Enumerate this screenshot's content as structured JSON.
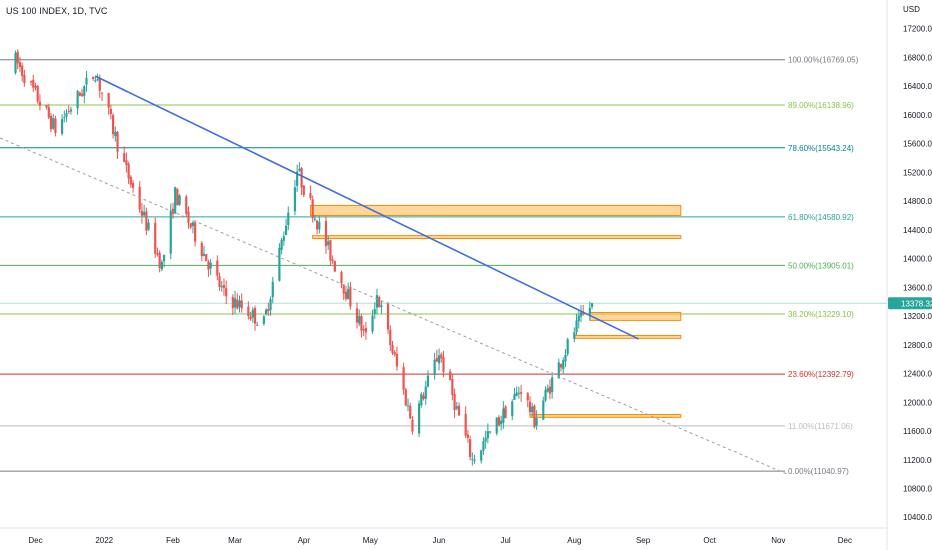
{
  "header": {
    "symbol_title": "US 100 INDEX, 1D, TVC",
    "currency": "USD"
  },
  "chart_data": {
    "type": "candlestick",
    "y_axis": {
      "ylim": [
        10250,
        17600
      ],
      "ticks": [
        "17200.00",
        "16800.00",
        "16400.00",
        "16000.00",
        "15600.00",
        "15200.00",
        "14800.00",
        "14400.00",
        "14000.00",
        "13600.00",
        "13200.00",
        "12800.00",
        "12400.00",
        "12000.00",
        "11600.00",
        "11200.00",
        "10800.00",
        "10400.00"
      ],
      "tick_values": [
        17200,
        16800,
        16400,
        16000,
        15600,
        15200,
        14800,
        14400,
        14000,
        13600,
        13200,
        12800,
        12400,
        12000,
        11600,
        11200,
        10800,
        10400
      ]
    },
    "x_axis": {
      "start_date": "2021-11-15",
      "end_date": "2022-12-20",
      "ticks": [
        {
          "label": "Dec",
          "date": "2021-12-01"
        },
        {
          "label": "2022",
          "date": "2022-01-01"
        },
        {
          "label": "Feb",
          "date": "2022-02-01"
        },
        {
          "label": "Mar",
          "date": "2022-03-01"
        },
        {
          "label": "Apr",
          "date": "2022-04-01"
        },
        {
          "label": "May",
          "date": "2022-05-01"
        },
        {
          "label": "Jun",
          "date": "2022-06-01"
        },
        {
          "label": "Jul",
          "date": "2022-07-01"
        },
        {
          "label": "Aug",
          "date": "2022-08-01"
        },
        {
          "label": "Sep",
          "date": "2022-09-01"
        },
        {
          "label": "Oct",
          "date": "2022-10-01"
        },
        {
          "label": "Nov",
          "date": "2022-11-01"
        },
        {
          "label": "Dec",
          "date": "2022-12-01"
        }
      ]
    },
    "fib_levels": [
      {
        "label": "100.00%(16769.05)",
        "value": 16769.05,
        "color": "#787b86"
      },
      {
        "label": "89.00%(16138.96)",
        "value": 16138.96,
        "color": "#8bc34a"
      },
      {
        "label": "78.60%(15543.24)",
        "value": 15543.24,
        "color": "#00838f"
      },
      {
        "label": "61.80%(14580.92)",
        "value": 14580.92,
        "color": "#26a69a"
      },
      {
        "label": "50.00%(13905.01)",
        "value": 13905.01,
        "color": "#4caf50"
      },
      {
        "label": "38.20%(13229.10)",
        "value": 13229.1,
        "color": "#8bc34a"
      },
      {
        "label": "23.60%(12392.79)",
        "value": 12392.79,
        "color": "#d32f2f"
      },
      {
        "label": "11.00%(11671.06)",
        "value": 11671.06,
        "color": "#bdbdbd"
      },
      {
        "label": "0.00%(11040.97)",
        "value": 11040.97,
        "color": "#787b86"
      }
    ],
    "last_price": {
      "label": "13378.32",
      "value": 13378.32
    },
    "zones": [
      {
        "from": "2022-04-04",
        "to": "2022-09-18",
        "low": 14600,
        "high": 14740
      },
      {
        "from": "2022-04-05",
        "to": "2022-09-18",
        "low": 14280,
        "high": 14320
      },
      {
        "from": "2022-08-08",
        "to": "2022-09-18",
        "low": 13140,
        "high": 13250
      },
      {
        "from": "2022-08-01",
        "to": "2022-09-18",
        "low": 12890,
        "high": 12930
      },
      {
        "from": "2022-07-12",
        "to": "2022-09-18",
        "low": 11790,
        "high": 11830
      }
    ],
    "trendlines": [
      {
        "from": {
          "date": "2021-12-28",
          "value": 16540
        },
        "to": {
          "date": "2022-08-30",
          "value": 12880
        },
        "color": "#3f6fdc",
        "dashed": false
      },
      {
        "from": {
          "date": "2021-11-15",
          "value": 15680
        },
        "to": {
          "date": "2022-11-05",
          "value": 11000
        },
        "color": "#9e9e9e",
        "dashed": true
      }
    ],
    "anchors": [
      {
        "date": "2021-11-22",
        "value": 16765
      },
      {
        "date": "2021-12-10",
        "value": 15800
      },
      {
        "date": "2021-12-28",
        "value": 16600
      },
      {
        "date": "2022-01-10",
        "value": 15300
      },
      {
        "date": "2022-01-27",
        "value": 13900
      },
      {
        "date": "2022-02-02",
        "value": 14900
      },
      {
        "date": "2022-02-24",
        "value": 13500
      },
      {
        "date": "2022-03-14",
        "value": 13100
      },
      {
        "date": "2022-03-29",
        "value": 15230
      },
      {
        "date": "2022-04-11",
        "value": 14200
      },
      {
        "date": "2022-04-29",
        "value": 12900
      },
      {
        "date": "2022-05-04",
        "value": 13500
      },
      {
        "date": "2022-05-20",
        "value": 11700
      },
      {
        "date": "2022-06-01",
        "value": 12700
      },
      {
        "date": "2022-06-16",
        "value": 11200
      },
      {
        "date": "2022-07-08",
        "value": 12200
      },
      {
        "date": "2022-07-14",
        "value": 11750
      },
      {
        "date": "2022-08-01",
        "value": 13000
      },
      {
        "date": "2022-08-08",
        "value": 13330
      },
      {
        "date": "2022-08-10",
        "value": 13378
      }
    ]
  }
}
